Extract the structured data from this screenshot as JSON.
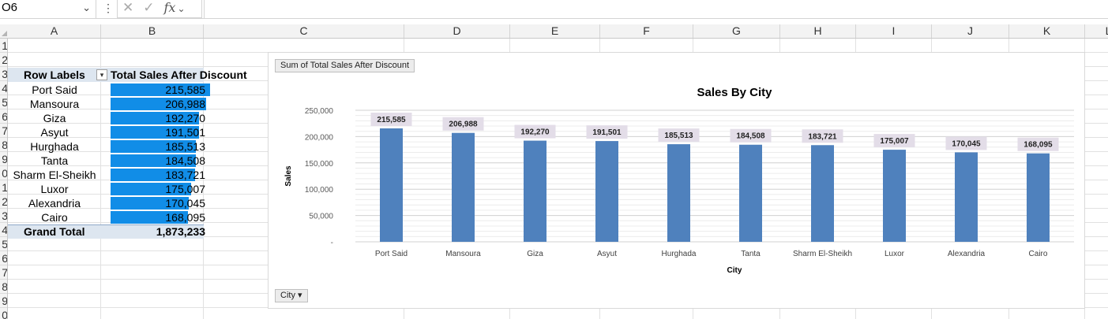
{
  "formula_bar": {
    "name_box": "O6",
    "formula": ""
  },
  "columns": [
    "A",
    "B",
    "C",
    "D",
    "E",
    "F",
    "G",
    "H",
    "I",
    "J",
    "K",
    "L"
  ],
  "rows": [
    "1",
    "2",
    "3",
    "4",
    "5",
    "6",
    "7",
    "8",
    "9",
    "0",
    "1",
    "2",
    "3",
    "4",
    "5",
    "6",
    "7",
    "8",
    "9",
    "0"
  ],
  "pivot": {
    "row_labels_header": "Row Labels",
    "value_header": "Total Sales After Discount",
    "rows": [
      {
        "city": "Port Said",
        "value": "215,585",
        "num": 215585
      },
      {
        "city": "Mansoura",
        "value": "206,988",
        "num": 206988
      },
      {
        "city": "Giza",
        "value": "192,270",
        "num": 192270
      },
      {
        "city": "Asyut",
        "value": "191,501",
        "num": 191501
      },
      {
        "city": "Hurghada",
        "value": "185,513",
        "num": 185513
      },
      {
        "city": "Tanta",
        "value": "184,508",
        "num": 184508
      },
      {
        "city": "Sharm El-Sheikh",
        "value": "183,721",
        "num": 183721
      },
      {
        "city": "Luxor",
        "value": "175,007",
        "num": 175007
      },
      {
        "city": "Alexandria",
        "value": "170,045",
        "num": 170045
      },
      {
        "city": "Cairo",
        "value": "168,095",
        "num": 168095
      }
    ],
    "grand_total_label": "Grand Total",
    "grand_total_value": "1,873,233",
    "bar_color": "#118de7"
  },
  "chart_buttons": {
    "value_field": "Sum of Total Sales After Discount",
    "axis_field": "City"
  },
  "chart_data": {
    "type": "bar",
    "title": "Sales By City",
    "xlabel": "City",
    "ylabel": "Sales",
    "categories": [
      "Port Said",
      "Mansoura",
      "Giza",
      "Asyut",
      "Hurghada",
      "Tanta",
      "Sharm El-Sheikh",
      "Luxor",
      "Alexandria",
      "Cairo"
    ],
    "values": [
      215585,
      206988,
      192270,
      191501,
      185513,
      184508,
      183721,
      175007,
      170045,
      168095
    ],
    "data_labels": [
      "215,585",
      "206,988",
      "192,270",
      "191,501",
      "185,513",
      "184,508",
      "183,721",
      "175,007",
      "170,045",
      "168,095"
    ],
    "ylim": [
      0,
      250000
    ],
    "yticks": [
      0,
      50000,
      100000,
      150000,
      200000,
      250000
    ],
    "ytick_labels": [
      "-",
      "50,000",
      "100,000",
      "150,000",
      "200,000",
      "250,000"
    ],
    "grid": true,
    "legend": "none",
    "bar_color": "#4f81bd"
  }
}
